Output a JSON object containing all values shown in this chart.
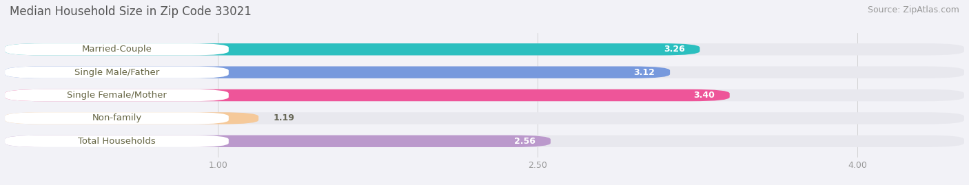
{
  "title": "Median Household Size in Zip Code 33021",
  "source": "Source: ZipAtlas.com",
  "categories": [
    "Married-Couple",
    "Single Male/Father",
    "Single Female/Mother",
    "Non-family",
    "Total Households"
  ],
  "values": [
    3.26,
    3.12,
    3.4,
    1.19,
    2.56
  ],
  "bar_colors": [
    "#2bbfbf",
    "#7799dd",
    "#ee5599",
    "#f5c99a",
    "#bb99cc"
  ],
  "background_color": "#f2f2f7",
  "bar_bg_color": "#e8e8ee",
  "xmin": 0.0,
  "xmax": 4.5,
  "xticks": [
    1.0,
    2.5,
    4.0
  ],
  "xtick_labels": [
    "1.00",
    "2.50",
    "4.00"
  ],
  "title_fontsize": 12,
  "source_fontsize": 9,
  "label_fontsize": 9.5,
  "value_fontsize": 9,
  "bar_height": 0.52,
  "label_text_color": "#666644",
  "value_in_color": "#ffffff",
  "value_out_color": "#666655"
}
